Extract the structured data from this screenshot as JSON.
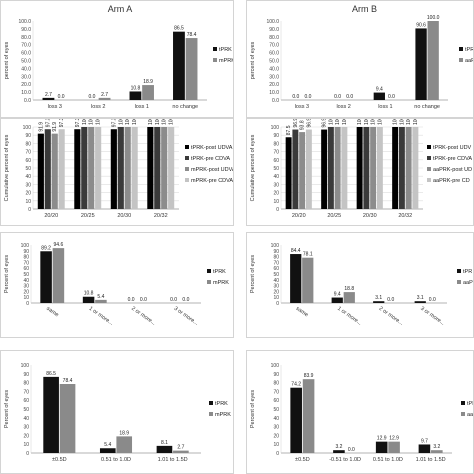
{
  "chart_data": [
    {
      "type": "bar",
      "title": "Arm A",
      "ylabel": "percent of eyes",
      "ylim": [
        0,
        100
      ],
      "yticks": [
        "0.0",
        "10.0",
        "20.0",
        "30.0",
        "40.0",
        "50.0",
        "60.0",
        "70.0",
        "80.0",
        "90.0",
        "100.0"
      ],
      "categories": [
        "loss 3",
        "loss 2",
        "loss 1",
        "no change"
      ],
      "series": [
        {
          "name": "tPRK",
          "color": "#111111",
          "values": [
            2.7,
            0.0,
            10.8,
            86.5
          ],
          "labels": [
            "2.7",
            "0.0",
            "10.8",
            "86.5"
          ]
        },
        {
          "name": "mPRK",
          "color": "#8a8a8a",
          "values": [
            0.0,
            2.7,
            18.9,
            78.4
          ],
          "labels": [
            "0.0",
            "2.7",
            "18.9",
            "78.4"
          ]
        }
      ],
      "legend": "right",
      "grid": false
    },
    {
      "type": "bar",
      "title": "Arm B",
      "ylabel": "percent of eyes",
      "ylim": [
        0,
        100
      ],
      "yticks": [
        "0.0",
        "10.0",
        "20.0",
        "30.0",
        "40.0",
        "50.0",
        "60.0",
        "70.0",
        "80.0",
        "90.0",
        "100.0"
      ],
      "categories": [
        "loss 3",
        "loss 2",
        "loss 1",
        "no change"
      ],
      "series": [
        {
          "name": "tPRK",
          "color": "#111111",
          "values": [
            0.0,
            0.0,
            9.4,
            90.6
          ],
          "labels": [
            "0.0",
            "0.0",
            "9.4",
            "90.6"
          ]
        },
        {
          "name": "aaPRK",
          "color": "#8a8a8a",
          "values": [
            0.0,
            0.0,
            0.0,
            100.0
          ],
          "labels": [
            "0.0",
            "0.0",
            "0.0",
            "100.0"
          ]
        }
      ],
      "legend": "right",
      "grid": false
    },
    {
      "type": "bar",
      "title": "",
      "ylabel": "Cumulative percent of eyes",
      "ylim": [
        0,
        100
      ],
      "yticks": [
        "0",
        "10",
        "20",
        "30",
        "40",
        "50",
        "60",
        "70",
        "80",
        "90",
        "100"
      ],
      "categories": [
        "20/20",
        "20/25",
        "20/30",
        "20/32"
      ],
      "series": [
        {
          "name": "tPRK-post UDVA",
          "color": "#000000",
          "values": [
            91.9,
            97.3,
            97.3,
            100.0
          ],
          "labels": [
            "91.9",
            "97.3",
            "97.3",
            "100.0"
          ]
        },
        {
          "name": "tPRK-pre CDVA",
          "color": "#3a3a3a",
          "values": [
            97.3,
            100.0,
            100.0,
            100.0
          ],
          "labels": [
            "97.3",
            "100.0",
            "100.0",
            "100.0"
          ]
        },
        {
          "name": "mPRK-post UDVA",
          "color": "#8c8c8c",
          "values": [
            91.9,
            100.0,
            100.0,
            100.0
          ],
          "labels": [
            "91.9",
            "100.0",
            "100.0",
            "100.0"
          ]
        },
        {
          "name": "mPRK-pre CDVA",
          "color": "#c4c4c4",
          "values": [
            97.3,
            100.0,
            100.0,
            100.0
          ],
          "labels": [
            "97.3",
            "100.0",
            "100.0",
            "100.0"
          ]
        }
      ],
      "legend": "right",
      "grid": true
    },
    {
      "type": "bar",
      "title": "",
      "ylabel": "Cumulative percent of eyes",
      "ylim": [
        0,
        100
      ],
      "yticks": [
        "0",
        "10",
        "20",
        "30",
        "40",
        "50",
        "60",
        "70",
        "80",
        "90",
        "100"
      ],
      "categories": [
        "20/20",
        "20/25",
        "20/30",
        "20/32"
      ],
      "series": [
        {
          "name": "tPRK-post UDV",
          "color": "#000000",
          "values": [
            87.5,
            96.9,
            100.0,
            100.0
          ],
          "labels": [
            "87.5",
            "96.9",
            "100.0",
            "100.0"
          ]
        },
        {
          "name": "tPRK-pre CDVA",
          "color": "#3a3a3a",
          "values": [
            96.9,
            100.0,
            100.0,
            100.0
          ],
          "labels": [
            "96.9",
            "100.0",
            "100.0",
            "100.0"
          ]
        },
        {
          "name": "aaPRK-post UD",
          "color": "#8c8c8c",
          "values": [
            93.8,
            100.0,
            100.0,
            100.0
          ],
          "labels": [
            "93.8",
            "100.0",
            "100.0",
            "100.0"
          ]
        },
        {
          "name": "aaPRK-pre CD",
          "color": "#c4c4c4",
          "values": [
            96.9,
            100.0,
            100.0,
            100.0
          ],
          "labels": [
            "96.9",
            "100.0",
            "100.0",
            "100.0"
          ]
        }
      ],
      "legend": "right",
      "grid": true
    },
    {
      "type": "bar",
      "title": "",
      "ylabel": "Percent of eyes",
      "ylim": [
        0,
        100
      ],
      "yticks": [
        "0",
        "10",
        "20",
        "30",
        "40",
        "50",
        "60",
        "70",
        "80",
        "90",
        "100"
      ],
      "categories": [
        "same",
        "1 or more...",
        "2 or more...",
        "3 or more..."
      ],
      "series": [
        {
          "name": "tPRK",
          "color": "#111111",
          "values": [
            89.2,
            10.8,
            0.0,
            0.0
          ],
          "labels": [
            "89.2",
            "10.8",
            "0.0",
            "0.0"
          ]
        },
        {
          "name": "mPRK",
          "color": "#8a8a8a",
          "values": [
            94.6,
            5.4,
            0.0,
            0.0
          ],
          "labels": [
            "94.6",
            "5.4",
            "0.0",
            "0.0"
          ]
        }
      ],
      "legend": "right",
      "grid": false
    },
    {
      "type": "bar",
      "title": "",
      "ylabel": "Percent of eyes",
      "ylim": [
        0,
        100
      ],
      "yticks": [
        "0",
        "10",
        "20",
        "30",
        "40",
        "50",
        "60",
        "70",
        "80",
        "90",
        "100"
      ],
      "categories": [
        "same",
        "1 or more...",
        "2 or more...",
        "3 or more..."
      ],
      "series": [
        {
          "name": "tPR",
          "color": "#111111",
          "values": [
            84.4,
            9.4,
            3.1,
            3.1
          ],
          "labels": [
            "84.4",
            "9.4",
            "3.1",
            "3.1"
          ]
        },
        {
          "name": "aaP",
          "color": "#8a8a8a",
          "values": [
            78.1,
            18.8,
            0.0,
            0.0
          ],
          "labels": [
            "78.1",
            "18.8",
            "0.0",
            "0.0"
          ]
        }
      ],
      "legend": "right",
      "grid": false
    },
    {
      "type": "bar",
      "title": "",
      "ylabel": "Percent of eyes",
      "ylim": [
        0,
        100
      ],
      "yticks": [
        "0",
        "10",
        "20",
        "30",
        "40",
        "50",
        "60",
        "70",
        "80",
        "90",
        "100"
      ],
      "categories": [
        "±0.5D",
        "0.51 to 1.0D",
        "1.01 to 1.5D"
      ],
      "series": [
        {
          "name": "tPRK",
          "color": "#111111",
          "values": [
            86.5,
            5.4,
            8.1
          ],
          "labels": [
            "86.5",
            "5.4",
            "8.1"
          ]
        },
        {
          "name": "mPRK",
          "color": "#8a8a8a",
          "values": [
            78.4,
            18.9,
            2.7
          ],
          "labels": [
            "78.4",
            "18.9",
            "2.7"
          ]
        }
      ],
      "legend": "right",
      "grid": false
    },
    {
      "type": "bar",
      "title": "",
      "ylabel": "Percent of eyes",
      "ylim": [
        0,
        100
      ],
      "yticks": [
        "0",
        "10",
        "20",
        "30",
        "40",
        "50",
        "60",
        "70",
        "80",
        "90",
        "100"
      ],
      "categories": [
        "±0.5D",
        "-0.51 to 1.0D",
        "0.51 to 1.0D",
        "1.01 to 1.5D"
      ],
      "series": [
        {
          "name": "tPR",
          "color": "#111111",
          "values": [
            74.2,
            3.2,
            12.9,
            9.7
          ],
          "labels": [
            "74.2",
            "3.2",
            "12.9",
            "9.7"
          ]
        },
        {
          "name": "aaP",
          "color": "#8a8a8a",
          "values": [
            83.9,
            0.0,
            12.9,
            3.2
          ],
          "labels": [
            "83.9",
            "0.0",
            "12.9",
            "3.2"
          ]
        }
      ],
      "legend": "right",
      "grid": false
    }
  ]
}
